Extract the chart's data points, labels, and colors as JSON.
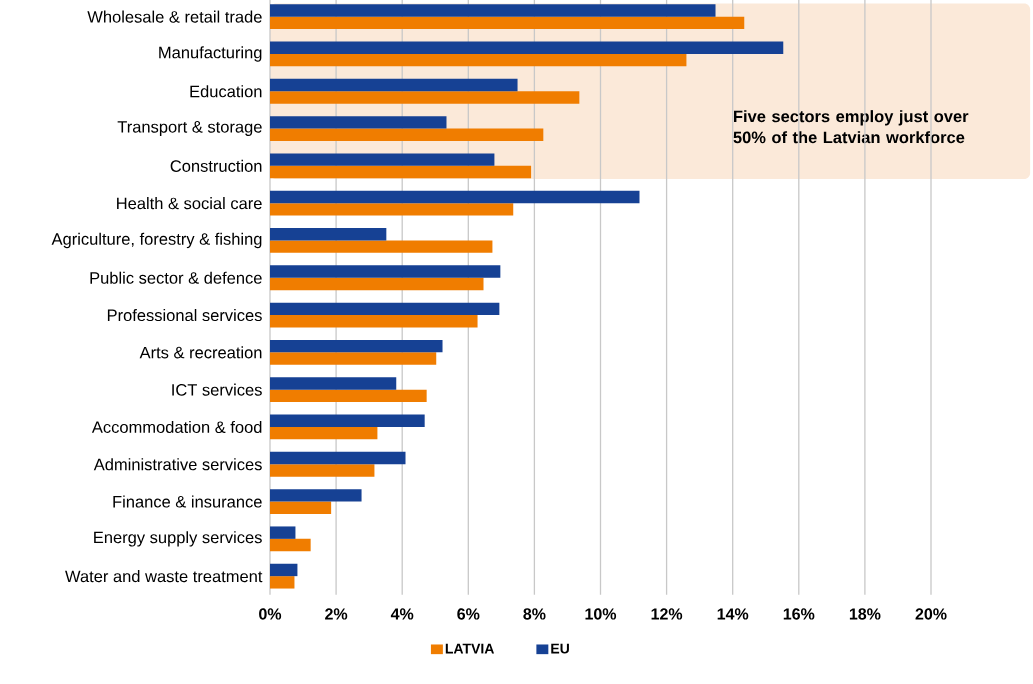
{
  "chart_data": {
    "type": "bar",
    "orientation": "horizontal",
    "categories": [
      "Wholesale & retail trade",
      "Manufacturing",
      "Education",
      "Transport & storage",
      "Construction",
      "Health & social care",
      "Agriculture, forestry & fishing",
      "Public sector & defence",
      "Professional services",
      "Arts & recreation",
      "ICT services",
      "Accommodation & food",
      "Administrative services",
      "Finance & insurance",
      "Energy supply services",
      "Water and waste treatment"
    ],
    "series": [
      {
        "name": "LATVIA",
        "color": "#f07d00",
        "values": [
          14.35,
          12.6,
          9.36,
          8.27,
          7.9,
          7.36,
          6.73,
          6.46,
          6.28,
          5.03,
          4.74,
          3.25,
          3.16,
          1.85,
          1.23,
          0.74
        ]
      },
      {
        "name": "EU",
        "color": "#164194",
        "values": [
          13.48,
          15.53,
          7.49,
          5.34,
          6.79,
          11.18,
          3.52,
          6.97,
          6.94,
          5.22,
          3.82,
          4.68,
          4.1,
          2.77,
          0.77,
          0.83
        ]
      }
    ],
    "xlim": [
      0,
      20
    ],
    "xticks": [
      {
        "value": 0,
        "label": "0%"
      },
      {
        "value": 2,
        "label": "2%"
      },
      {
        "value": 4,
        "label": "4%"
      },
      {
        "value": 6,
        "label": "6%"
      },
      {
        "value": 8,
        "label": "8%"
      },
      {
        "value": 10,
        "label": "10%"
      },
      {
        "value": 12,
        "label": "12%"
      },
      {
        "value": 14,
        "label": "14%"
      },
      {
        "value": 16,
        "label": "16%"
      },
      {
        "value": 18,
        "label": "18%"
      },
      {
        "value": 20,
        "label": "20%"
      }
    ],
    "bands": [
      {
        "axis": "y",
        "from": "Wholesale & retail trade",
        "to": "Construction",
        "label": "Five sectors employ just over 50% of the Latvian workforce",
        "color": "#fbe9d9"
      }
    ],
    "grid": "x",
    "legend": "bottom"
  }
}
